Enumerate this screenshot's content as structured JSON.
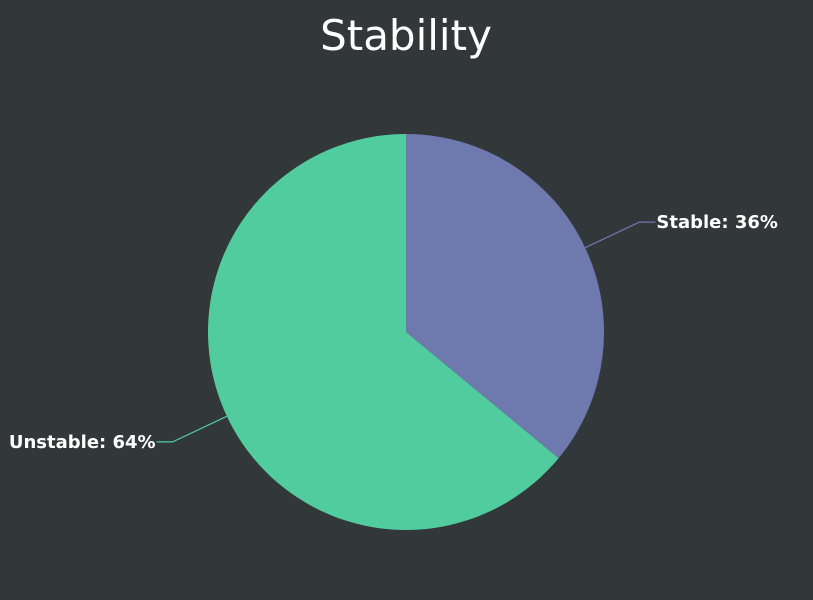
{
  "chart_data": {
    "type": "pie",
    "title": "Stability",
    "series": [
      {
        "name": "Stable",
        "value": 36,
        "label": "Stable: 36%",
        "color": "#6e7aad"
      },
      {
        "name": "Unstable",
        "value": 64,
        "label": "Unstable: 64%",
        "color": "#51cc9e"
      }
    ],
    "start_angle_deg": 0,
    "direction": "clockwise"
  },
  "colors": {
    "background": "#32373a",
    "text": "#ffffff"
  }
}
